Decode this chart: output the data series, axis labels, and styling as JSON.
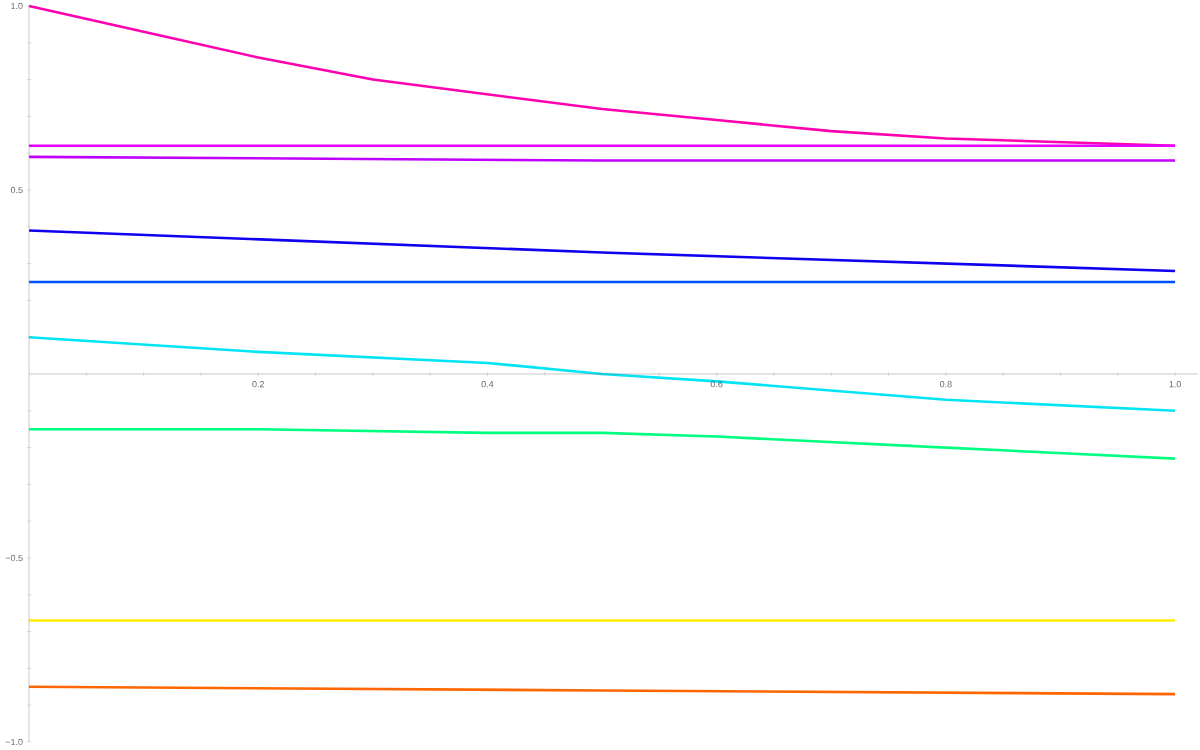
{
  "chart_data": {
    "type": "line",
    "marker": "none",
    "grid": false,
    "xlim": [
      0,
      1.02
    ],
    "ylim": [
      -1,
      1
    ],
    "xticks": [
      {
        "value": 0.05,
        "label": null
      },
      {
        "value": 0.1,
        "label": null
      },
      {
        "value": 0.15,
        "label": null
      },
      0.2,
      {
        "value": 0.25,
        "label": null
      },
      {
        "value": 0.3,
        "label": null
      },
      {
        "value": 0.35,
        "label": null
      },
      0.4,
      {
        "value": 0.45,
        "label": null
      },
      {
        "value": 0.5,
        "label": null
      },
      {
        "value": 0.55,
        "label": null
      },
      0.6,
      {
        "value": 0.65,
        "label": null
      },
      {
        "value": 0.7,
        "label": null
      },
      {
        "value": 0.75,
        "label": null
      },
      0.8,
      {
        "value": 0.85,
        "label": null
      },
      {
        "value": 0.9,
        "label": null
      },
      {
        "value": 0.95,
        "label": null
      },
      {
        "value": 1,
        "label": "1.0"
      }
    ],
    "yticks": [
      {
        "value": -1,
        "label": "−1.0"
      },
      {
        "value": -0.9,
        "label": null
      },
      {
        "value": -0.8,
        "label": null
      },
      {
        "value": -0.7,
        "label": null
      },
      {
        "value": -0.6,
        "label": null
      },
      {
        "value": -0.5,
        "label": "−0.5"
      },
      {
        "value": -0.4,
        "label": null
      },
      {
        "value": -0.3,
        "label": null
      },
      {
        "value": -0.2,
        "label": null
      },
      {
        "value": -0.1,
        "label": null
      },
      {
        "value": 0.1,
        "label": null
      },
      {
        "value": 0.2,
        "label": null
      },
      {
        "value": 0.3,
        "label": null
      },
      {
        "value": 0.4,
        "label": null
      },
      0.5,
      {
        "value": 0.6,
        "label": null
      },
      {
        "value": 0.7,
        "label": null
      },
      {
        "value": 0.8,
        "label": null
      },
      {
        "value": 0.9,
        "label": null
      },
      {
        "value": 1,
        "label": "1.0"
      }
    ],
    "series": [
      {
        "color": "#ff00b0",
        "x": [
          0,
          0.1,
          0.2,
          0.3,
          0.4,
          0.5,
          0.6,
          0.7,
          0.8,
          0.9,
          1
        ],
        "values": [
          1.0,
          0.93,
          0.86,
          0.8,
          0.76,
          0.72,
          0.69,
          0.66,
          0.64,
          0.63,
          0.62
        ]
      },
      {
        "color": "#e400ff",
        "x": [
          0,
          1
        ],
        "values": [
          0.62,
          0.62
        ]
      },
      {
        "color": "#c000ff",
        "x": [
          0,
          0.5,
          1
        ],
        "values": [
          0.59,
          0.58,
          0.58
        ]
      },
      {
        "color": "#1000f0",
        "x": [
          0,
          0.5,
          1
        ],
        "values": [
          0.39,
          0.33,
          0.28
        ]
      },
      {
        "color": "#0050ff",
        "x": [
          0,
          1
        ],
        "values": [
          0.25,
          0.25
        ]
      },
      {
        "color": "#00e4f4",
        "x": [
          0,
          0.2,
          0.4,
          0.5,
          0.6,
          0.8,
          1
        ],
        "values": [
          0.1,
          0.06,
          0.03,
          0.0,
          -0.02,
          -0.07,
          -0.1
        ]
      },
      {
        "color": "#00ff80",
        "x": [
          0,
          0.2,
          0.4,
          0.5,
          0.6,
          0.8,
          1
        ],
        "values": [
          -0.15,
          -0.15,
          -0.16,
          -0.16,
          -0.17,
          -0.2,
          -0.23
        ]
      },
      {
        "color": "#ffee00",
        "x": [
          0,
          1
        ],
        "values": [
          -0.67,
          -0.67
        ]
      },
      {
        "color": "#ff6600",
        "x": [
          0,
          0.5,
          1
        ],
        "values": [
          -0.85,
          -0.86,
          -0.87
        ]
      }
    ]
  }
}
